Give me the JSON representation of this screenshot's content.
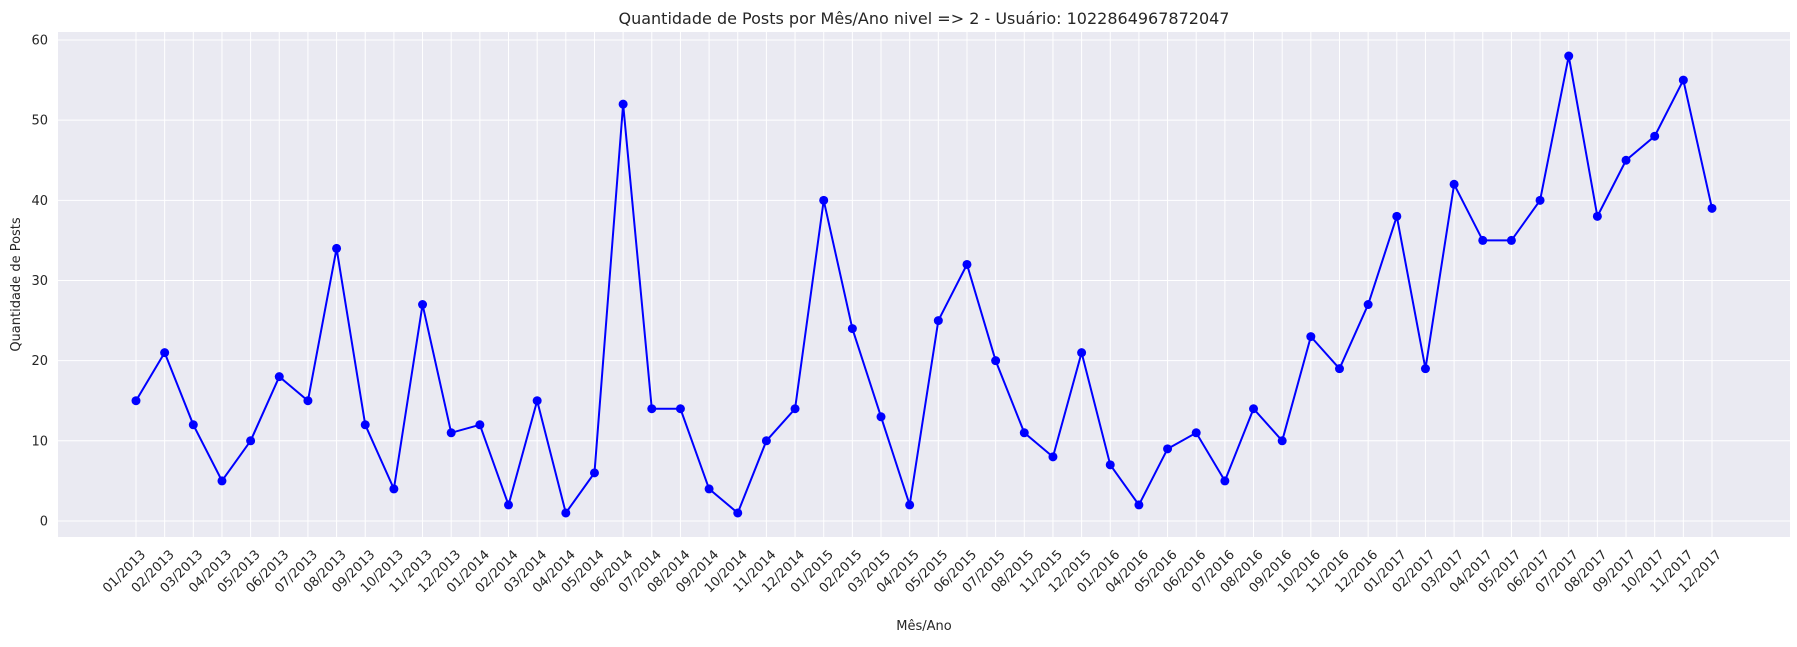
{
  "chart_data": {
    "type": "line",
    "title": "Quantidade de Posts por Mês/Ano nivel => 2 - Usuário: 1022864967872047",
    "xlabel": "Mês/Ano",
    "ylabel": "Quantidade de Posts",
    "ylim": [
      -2,
      61
    ],
    "yticks": [
      0,
      10,
      20,
      30,
      40,
      50,
      60
    ],
    "grid": true,
    "background": "#eaeaf2",
    "grid_color": "#ffffff",
    "line_color": "#0000ff",
    "marker": "circle",
    "categories": [
      "01/2013",
      "02/2013",
      "03/2013",
      "04/2013",
      "05/2013",
      "06/2013",
      "07/2013",
      "08/2013",
      "09/2013",
      "10/2013",
      "11/2013",
      "12/2013",
      "01/2014",
      "02/2014",
      "03/2014",
      "04/2014",
      "05/2014",
      "06/2014",
      "07/2014",
      "08/2014",
      "09/2014",
      "10/2014",
      "11/2014",
      "12/2014",
      "01/2015",
      "02/2015",
      "03/2015",
      "04/2015",
      "05/2015",
      "06/2015",
      "07/2015",
      "08/2015",
      "11/2015",
      "12/2015",
      "01/2016",
      "04/2016",
      "05/2016",
      "06/2016",
      "07/2016",
      "08/2016",
      "09/2016",
      "10/2016",
      "11/2016",
      "12/2016",
      "01/2017",
      "02/2017",
      "03/2017",
      "04/2017",
      "05/2017",
      "06/2017",
      "07/2017",
      "08/2017",
      "09/2017",
      "10/2017",
      "11/2017",
      "12/2017"
    ],
    "values": [
      15,
      21,
      12,
      5,
      10,
      18,
      15,
      34,
      12,
      4,
      27,
      11,
      12,
      2,
      15,
      1,
      6,
      52,
      14,
      14,
      4,
      1,
      10,
      14,
      40,
      24,
      13,
      2,
      25,
      32,
      20,
      11,
      8,
      21,
      7,
      2,
      9,
      11,
      5,
      14,
      10,
      23,
      19,
      27,
      38,
      19,
      42,
      35,
      35,
      40,
      58,
      38,
      45,
      48,
      55,
      39
    ]
  }
}
